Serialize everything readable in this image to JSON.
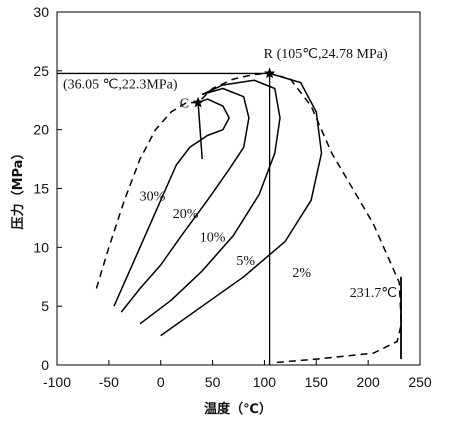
{
  "chart_data": {
    "type": "line",
    "title": "",
    "xlabel": "温度（℃）",
    "ylabel": "压力（MPa）",
    "xlim": [
      -100,
      250
    ],
    "ylim": [
      0,
      30
    ],
    "xticks": [
      -100,
      -50,
      0,
      50,
      100,
      150,
      200,
      250
    ],
    "yticks": [
      0,
      5,
      10,
      15,
      20,
      25,
      30
    ],
    "grid": false,
    "legend": "none",
    "phase_envelope": {
      "style": "dashed",
      "points": [
        [
          -62,
          6.5
        ],
        [
          -50,
          10
        ],
        [
          -35,
          14
        ],
        [
          -20,
          17.5
        ],
        [
          -5,
          20
        ],
        [
          10,
          21.5
        ],
        [
          25,
          22.3
        ],
        [
          36.05,
          22.3
        ],
        [
          50,
          23.5
        ],
        [
          70,
          24.3
        ],
        [
          90,
          24.7
        ],
        [
          105,
          24.78
        ],
        [
          125,
          24.3
        ],
        [
          145,
          22
        ],
        [
          165,
          18
        ],
        [
          185,
          15
        ],
        [
          205,
          12
        ],
        [
          220,
          9
        ],
        [
          230,
          7
        ],
        [
          232,
          3.5
        ],
        [
          228,
          2
        ],
        [
          205,
          1
        ],
        [
          150,
          0.5
        ],
        [
          110,
          0.2
        ]
      ]
    },
    "series": [
      {
        "label": "30%",
        "points": [
          [
            36.05,
            22.3
          ],
          [
            38,
            20
          ],
          [
            40,
            17.5
          ]
        ]
      },
      {
        "label": "20%",
        "points": [
          [
            -45,
            5
          ],
          [
            -30,
            8
          ],
          [
            -15,
            11
          ],
          [
            0,
            14
          ],
          [
            15,
            17
          ],
          [
            28,
            18.5
          ],
          [
            45,
            19.5
          ],
          [
            60,
            20
          ],
          [
            66,
            21
          ],
          [
            60,
            22
          ],
          [
            45,
            22.6
          ],
          [
            36.05,
            22.3
          ]
        ]
      },
      {
        "label": "10%",
        "points": [
          [
            -38,
            4.5
          ],
          [
            -20,
            6.5
          ],
          [
            0,
            8.5
          ],
          [
            20,
            11
          ],
          [
            45,
            14
          ],
          [
            65,
            16.5
          ],
          [
            80,
            18.5
          ],
          [
            85,
            21
          ],
          [
            80,
            22.8
          ],
          [
            60,
            23.5
          ],
          [
            40,
            23
          ]
        ]
      },
      {
        "label": "5%",
        "points": [
          [
            -20,
            3.5
          ],
          [
            10,
            5.5
          ],
          [
            40,
            8
          ],
          [
            70,
            11
          ],
          [
            95,
            14.5
          ],
          [
            110,
            18
          ],
          [
            115,
            21
          ],
          [
            110,
            23.5
          ],
          [
            90,
            24.2
          ],
          [
            60,
            23.8
          ],
          [
            40,
            23
          ]
        ]
      },
      {
        "label": "2%",
        "points": [
          [
            0,
            2.5
          ],
          [
            40,
            5
          ],
          [
            80,
            7.5
          ],
          [
            120,
            10.5
          ],
          [
            145,
            14
          ],
          [
            155,
            18
          ],
          [
            150,
            21.5
          ],
          [
            135,
            24
          ],
          [
            105,
            24.78
          ]
        ]
      }
    ],
    "cricondentherm_line": {
      "label": "231.7℃",
      "x": 231.7,
      "y_range": [
        0.5,
        7.5
      ]
    },
    "critical_point": {
      "letter": "C",
      "label": "(36.05 ℃,22.3MPa)",
      "x": 36.05,
      "y": 22.3
    },
    "cricondenbar_point": {
      "letter": "R",
      "label": "(105℃,24.78 MPa)",
      "x": 105,
      "y": 24.78
    },
    "curve_labels": [
      {
        "text": "30%",
        "x": -8,
        "y": 14
      },
      {
        "text": "20%",
        "x": 24,
        "y": 12.5
      },
      {
        "text": "10%",
        "x": 50,
        "y": 10.5
      },
      {
        "text": "5%",
        "x": 82,
        "y": 8.5
      },
      {
        "text": "2%",
        "x": 136,
        "y": 7.5
      }
    ]
  }
}
